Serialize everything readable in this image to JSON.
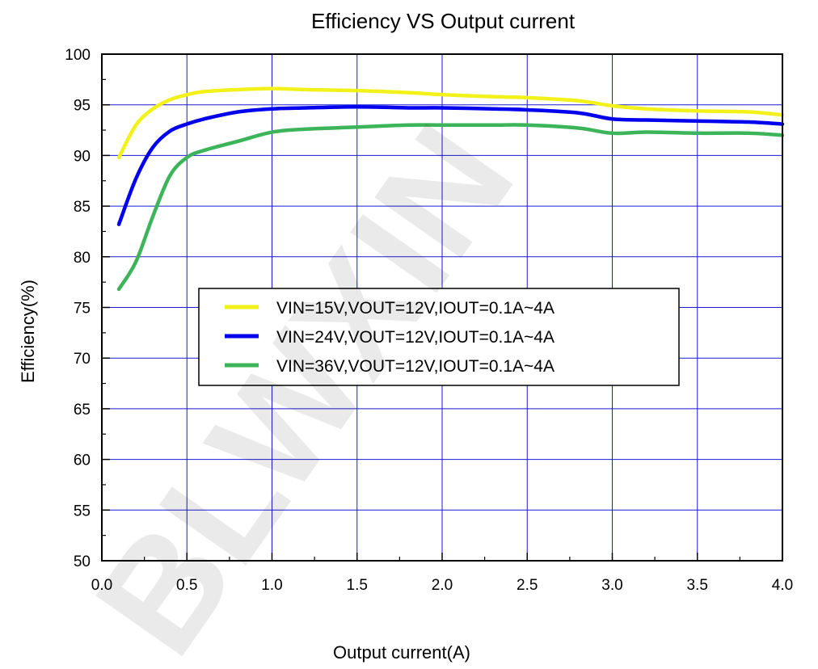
{
  "watermark": "BLWXIN",
  "chart_data": {
    "type": "line",
    "title": "Efficiency VS Output current",
    "xlabel": "Output current(A)",
    "ylabel": "Efficiency(%)",
    "xlim": [
      0.0,
      4.0
    ],
    "ylim": [
      50,
      100
    ],
    "xticks": [
      "0.0",
      "0.5",
      "1.0",
      "1.5",
      "2.0",
      "2.5",
      "3.0",
      "3.5",
      "4.0"
    ],
    "yticks": [
      "50",
      "55",
      "60",
      "65",
      "70",
      "75",
      "80",
      "85",
      "90",
      "95",
      "100"
    ],
    "grid": true,
    "legend_position": "center-left",
    "series": [
      {
        "name": "VIN=15V,VOUT=12V,IOUT=0.1A~4A",
        "color": "#f2f21a",
        "x": [
          0.1,
          0.2,
          0.3,
          0.4,
          0.5,
          0.6,
          0.8,
          1.0,
          1.2,
          1.5,
          1.8,
          2.0,
          2.3,
          2.5,
          2.8,
          3.0,
          3.2,
          3.5,
          3.8,
          4.0
        ],
        "y": [
          89.8,
          93.0,
          94.6,
          95.5,
          96.0,
          96.3,
          96.5,
          96.6,
          96.5,
          96.4,
          96.2,
          96.0,
          95.8,
          95.7,
          95.4,
          94.9,
          94.6,
          94.4,
          94.3,
          94.0
        ]
      },
      {
        "name": "VIN=24V,VOUT=12V,IOUT=0.1A~4A",
        "color": "#0000ee",
        "x": [
          0.1,
          0.2,
          0.3,
          0.4,
          0.5,
          0.6,
          0.8,
          1.0,
          1.2,
          1.5,
          1.8,
          2.0,
          2.3,
          2.5,
          2.8,
          3.0,
          3.2,
          3.5,
          3.8,
          4.0
        ],
        "y": [
          83.2,
          87.7,
          90.8,
          92.4,
          93.1,
          93.6,
          94.3,
          94.6,
          94.7,
          94.8,
          94.7,
          94.7,
          94.6,
          94.5,
          94.2,
          93.6,
          93.5,
          93.4,
          93.3,
          93.1
        ]
      },
      {
        "name": "VIN=36V,VOUT=12V,IOUT=0.1A~4A",
        "color": "#3cb45a",
        "x": [
          0.1,
          0.2,
          0.3,
          0.4,
          0.5,
          0.6,
          0.8,
          1.0,
          1.2,
          1.5,
          1.8,
          2.0,
          2.3,
          2.5,
          2.8,
          3.0,
          3.2,
          3.5,
          3.8,
          4.0
        ],
        "y": [
          76.8,
          79.5,
          84.0,
          88.0,
          89.8,
          90.5,
          91.4,
          92.3,
          92.6,
          92.8,
          93.0,
          93.0,
          93.0,
          93.0,
          92.7,
          92.2,
          92.3,
          92.2,
          92.2,
          92.0
        ]
      }
    ]
  }
}
